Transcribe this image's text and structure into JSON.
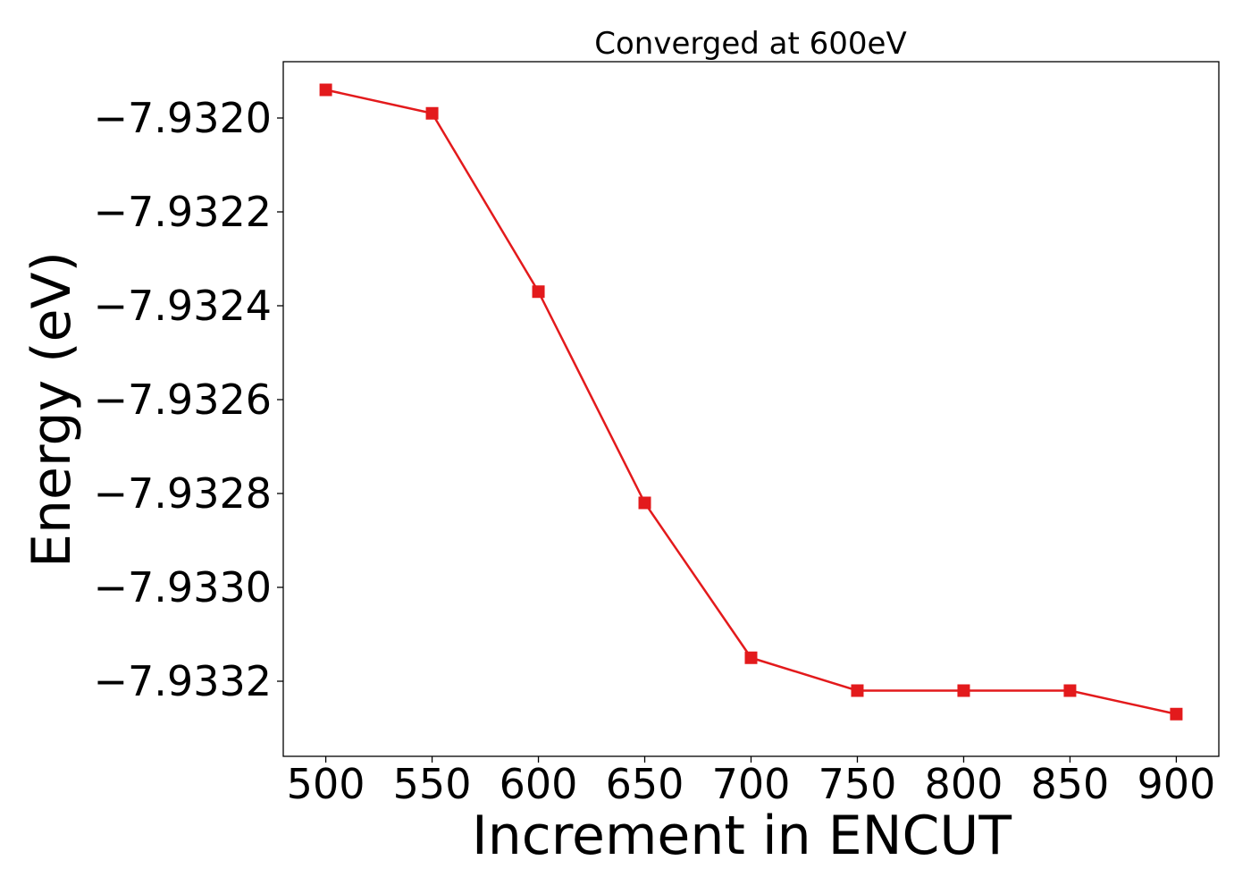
{
  "chart_data": {
    "type": "line",
    "title": "Converged at 600eV",
    "xlabel": "Increment in ENCUT",
    "ylabel": "Energy (eV)",
    "xlim": [
      480,
      920
    ],
    "ylim": [
      -7.93336,
      -7.93188
    ],
    "x_ticks": [
      500,
      550,
      600,
      650,
      700,
      750,
      800,
      850,
      900
    ],
    "x_tick_labels": [
      "500",
      "550",
      "600",
      "650",
      "700",
      "750",
      "800",
      "850",
      "900"
    ],
    "y_ticks": [
      -7.932,
      -7.9322,
      -7.9324,
      -7.9326,
      -7.9328,
      -7.933,
      -7.9332
    ],
    "y_tick_labels": [
      "−7.9320",
      "−7.9322",
      "−7.9324",
      "−7.9326",
      "−7.9328",
      "−7.9330",
      "−7.9332"
    ],
    "grid": false,
    "legend": "none",
    "series": [
      {
        "color": "#e31a1c",
        "marker": "square",
        "x": [
          500,
          550,
          600,
          650,
          700,
          750,
          800,
          850,
          900
        ],
        "y": [
          -7.93194,
          -7.93199,
          -7.93237,
          -7.93282,
          -7.93315,
          -7.93322,
          -7.93322,
          -7.93322,
          -7.93327
        ]
      }
    ]
  }
}
